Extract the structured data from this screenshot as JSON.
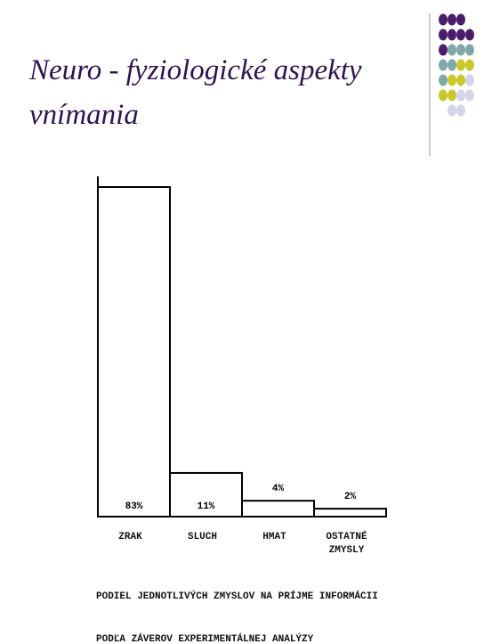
{
  "chart_data": {
    "type": "bar",
    "title": "Neuro - fyziologické aspekty vnímania",
    "categories": [
      "ZRAK",
      "SLUCH",
      "HMAT",
      "OSTATNÉ ZMYSLY"
    ],
    "values": [
      83,
      11,
      4,
      2
    ],
    "value_labels": [
      "83%",
      "11%",
      "4%",
      "2%"
    ],
    "color": "#ffffff",
    "caption": [
      "PODIEL JEDNOTLIVÝCH ZMYSLOV NA PRÍJME INFORMÁCII",
      "PODĽA ZÁVEROV EXPERIMENTÁLNEJ ANALÝZY"
    ]
  }
}
